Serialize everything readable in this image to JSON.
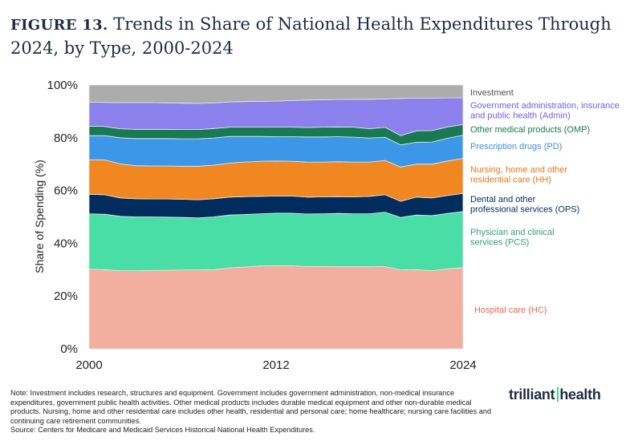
{
  "title": {
    "figure": "FIGURE 13.",
    "text": "Trends in Share of National Health Expenditures Through 2024, by Type, 2000-2024"
  },
  "chart_data": {
    "type": "area",
    "stacked": true,
    "x": [
      2000,
      2001,
      2002,
      2003,
      2004,
      2005,
      2006,
      2007,
      2008,
      2009,
      2010,
      2011,
      2012,
      2013,
      2014,
      2015,
      2016,
      2017,
      2018,
      2019,
      2020,
      2021,
      2022,
      2023,
      2024
    ],
    "x_ticks": [
      "2000",
      "2012",
      "2024"
    ],
    "y_ticks": [
      "0%",
      "20%",
      "40%",
      "60%",
      "80%",
      "100%"
    ],
    "ylim": [
      0,
      100
    ],
    "ylabel": "Share of Spending (%)",
    "xlabel": "",
    "grid": false,
    "legend_placement": "right",
    "series": [
      {
        "name": "Hospital care (HC)",
        "label_lines": [
          "Hospital care (HC)"
        ],
        "color": "#f2ae9f",
        "text_color": "#e8694a",
        "values": [
          30.2,
          30.0,
          29.6,
          29.6,
          29.7,
          29.8,
          29.9,
          29.9,
          30.0,
          30.7,
          31.0,
          31.4,
          31.5,
          31.5,
          31.2,
          31.2,
          31.1,
          31.1,
          31.1,
          31.2,
          29.9,
          30.0,
          29.6,
          30.3,
          30.8
        ]
      },
      {
        "name": "Physician and clinical services (PCS)",
        "label_lines": [
          "Physician and clinical",
          "services (PCS)"
        ],
        "color": "#48dea6",
        "text_color": "#2f9e78",
        "values": [
          21.0,
          21.0,
          20.6,
          20.4,
          20.3,
          20.1,
          19.9,
          19.7,
          20.0,
          20.0,
          19.9,
          19.8,
          19.9,
          19.9,
          19.9,
          20.0,
          20.2,
          20.1,
          20.1,
          20.6,
          19.9,
          20.7,
          20.9,
          21.0,
          21.2
        ]
      },
      {
        "name": "Dental and other professional services (OPS)",
        "label_lines": [
          "Dental and other",
          "professional services (OPS)"
        ],
        "color": "#002d5e",
        "text_color": "#002d5e",
        "values": [
          7.4,
          7.4,
          7.0,
          6.9,
          6.8,
          6.9,
          6.9,
          6.9,
          6.9,
          6.8,
          6.8,
          6.6,
          6.5,
          6.5,
          6.4,
          6.4,
          6.4,
          6.4,
          6.6,
          6.6,
          6.1,
          6.8,
          6.7,
          6.8,
          6.9
        ]
      },
      {
        "name": "Nursing, home and other residential care (HH)",
        "label_lines": [
          "Nursing, home and other",
          "residential care (HH)"
        ],
        "color": "#f08720",
        "text_color": "#e07a18",
        "values": [
          13.1,
          13.2,
          12.9,
          12.5,
          12.5,
          12.5,
          12.5,
          12.7,
          12.7,
          12.9,
          13.1,
          13.3,
          13.3,
          13.2,
          13.3,
          13.2,
          13.2,
          13.2,
          13.0,
          13.0,
          13.0,
          12.5,
          12.8,
          13.1,
          13.3
        ]
      },
      {
        "name": "Prescription drugs (PD)",
        "label_lines": [
          "Prescription drugs (PD)"
        ],
        "color": "#3d97e8",
        "text_color": "#3d8fe0",
        "values": [
          9.1,
          9.2,
          9.9,
          10.3,
          10.4,
          10.4,
          10.4,
          10.4,
          10.3,
          10.1,
          9.7,
          9.4,
          9.2,
          9.3,
          9.5,
          9.5,
          9.5,
          9.4,
          9.1,
          8.8,
          8.4,
          8.3,
          8.4,
          8.6,
          8.8
        ]
      },
      {
        "name": "Other medical products (OMP)",
        "label_lines": [
          "Other medical products (OMP)"
        ],
        "color": "#177a52",
        "text_color": "#177a52",
        "values": [
          3.6,
          3.5,
          3.4,
          3.5,
          3.5,
          3.5,
          3.5,
          3.5,
          3.6,
          3.5,
          3.5,
          3.5,
          3.6,
          3.6,
          3.6,
          3.7,
          3.7,
          3.8,
          3.5,
          3.8,
          3.5,
          4.3,
          4.3,
          4.3,
          4.0
        ]
      },
      {
        "name": "Government administration, insurance and public health (Admin)",
        "label_lines": [
          "Government administration, insurance",
          "and public health (Admin)"
        ],
        "color": "#8b80ec",
        "text_color": "#6f5fe6",
        "values": [
          9.1,
          9.1,
          9.9,
          10.1,
          10.1,
          10.0,
          10.0,
          9.9,
          9.7,
          9.6,
          9.7,
          9.8,
          9.9,
          10.1,
          10.4,
          10.4,
          10.4,
          10.6,
          11.2,
          10.7,
          14.1,
          12.4,
          12.3,
          11.0,
          10.1
        ]
      },
      {
        "name": "Investment",
        "label_lines": [
          "Investment"
        ],
        "color": "#acacac",
        "text_color": "#555555",
        "values": [
          6.5,
          6.6,
          6.7,
          6.7,
          6.7,
          6.8,
          6.9,
          7.0,
          6.8,
          6.4,
          6.3,
          6.2,
          6.1,
          5.9,
          5.7,
          5.6,
          5.5,
          5.4,
          5.4,
          5.3,
          5.1,
          5.0,
          5.0,
          4.9,
          4.9
        ]
      }
    ]
  },
  "note": "Note: Investment includes research, structures and equipment. Government includes government administration, non-medical insurance expenditures, government public health activities. Other medical products includes durable medical equipment and other non-durable medical products. Nursing, home and other residential care includes other health, residential and personal care; home healthcare; nursing care facilities and continuing care retirement communities.",
  "source": "Source: Centers for Medicare and Medicaid Services Historical National Health Expenditures.",
  "logo": {
    "part1": "trilliant",
    "part2": "health"
  }
}
